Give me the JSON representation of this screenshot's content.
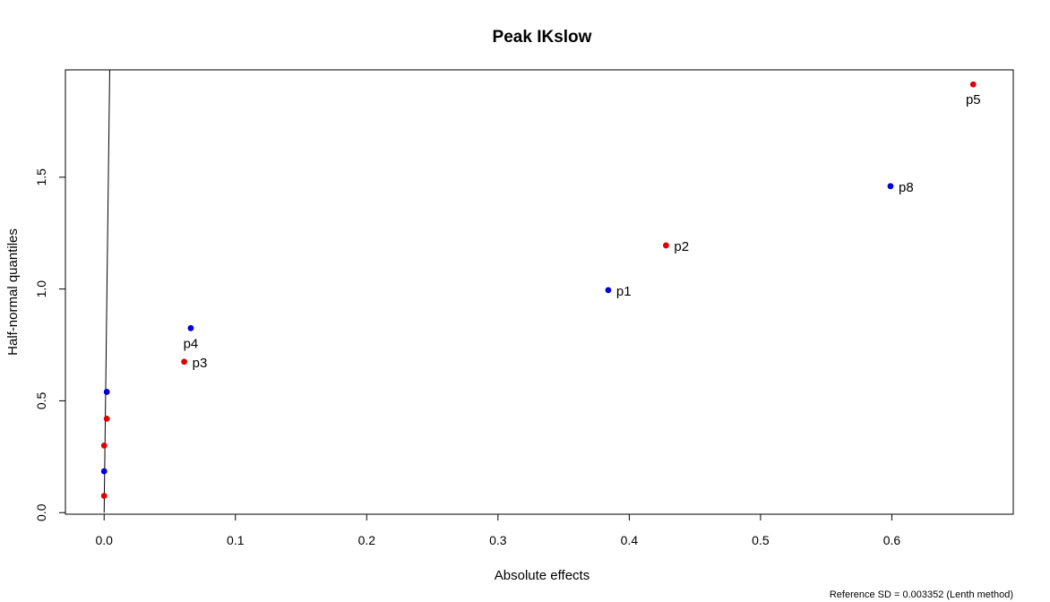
{
  "chart_data": {
    "type": "scatter",
    "title": "Peak IKslow",
    "xlabel": "Absolute effects",
    "ylabel": "Half-normal quantiles",
    "xlim": [
      -0.0295,
      0.6925
    ],
    "ylim": [
      -0.007,
      1.98
    ],
    "xticks": [
      "0.0",
      "0.1",
      "0.2",
      "0.3",
      "0.4",
      "0.5",
      "0.6"
    ],
    "yticks": [
      "0.0",
      "0.5",
      "1.0",
      "1.5"
    ],
    "grid": false,
    "colors": {
      "red": "#e00000",
      "blue": "#0000e0",
      "frame": "#000000"
    },
    "reference_line": {
      "from": [
        0.0,
        0.0
      ],
      "to": [
        0.0043,
        2.0
      ]
    },
    "points": [
      {
        "x": 0.0,
        "y": 0.075,
        "color": "red",
        "label": ""
      },
      {
        "x": 0.0,
        "y": 0.185,
        "color": "blue",
        "label": ""
      },
      {
        "x": 0.0,
        "y": 0.3,
        "color": "red",
        "label": ""
      },
      {
        "x": 0.002,
        "y": 0.42,
        "color": "red",
        "label": ""
      },
      {
        "x": 0.002,
        "y": 0.54,
        "color": "blue",
        "label": ""
      },
      {
        "x": 0.061,
        "y": 0.675,
        "color": "red",
        "label": "p3",
        "label_pos": "right"
      },
      {
        "x": 0.066,
        "y": 0.825,
        "color": "blue",
        "label": "p4",
        "label_pos": "below"
      },
      {
        "x": 0.384,
        "y": 0.995,
        "color": "blue",
        "label": "p1",
        "label_pos": "right"
      },
      {
        "x": 0.428,
        "y": 1.195,
        "color": "red",
        "label": "p2",
        "label_pos": "right"
      },
      {
        "x": 0.599,
        "y": 1.46,
        "color": "blue",
        "label": "p8",
        "label_pos": "right"
      },
      {
        "x": 0.662,
        "y": 1.915,
        "color": "red",
        "label": "p5",
        "label_pos": "below"
      }
    ],
    "footnote": "Reference SD = 0.003352 (Lenth method)"
  }
}
